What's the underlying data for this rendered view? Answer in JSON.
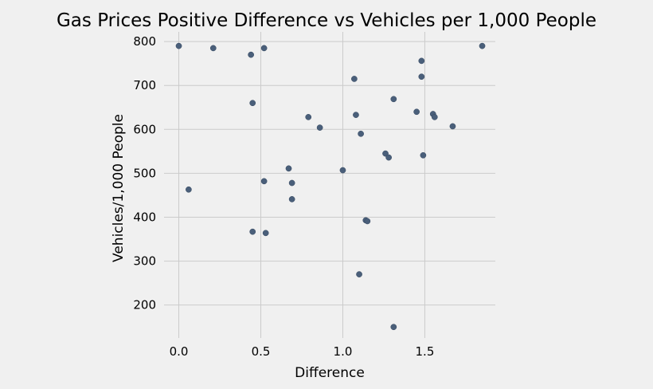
{
  "chart_data": {
    "type": "scatter",
    "title": "Gas Prices Positive Difference vs Vehicles per 1,000 People",
    "xlabel": "Difference",
    "ylabel": "Vehicles/1,000 People",
    "xlim": [
      -0.09,
      1.93
    ],
    "ylim": [
      125,
      822
    ],
    "xticks": [
      0.0,
      0.5,
      1.0,
      1.5
    ],
    "xtick_labels": [
      "0.0",
      "0.5",
      "1.0",
      "1.5"
    ],
    "yticks": [
      200,
      300,
      400,
      500,
      600,
      700,
      800
    ],
    "ytick_labels": [
      "200",
      "300",
      "400",
      "500",
      "600",
      "700",
      "800"
    ],
    "grid": true,
    "colors": {
      "point": "#4a5f7a",
      "background": "#f0f0f0",
      "grid": "#cbcbcb"
    },
    "points": [
      {
        "x": 0.0,
        "y": 790
      },
      {
        "x": 0.21,
        "y": 785
      },
      {
        "x": 0.44,
        "y": 770
      },
      {
        "x": 0.52,
        "y": 785
      },
      {
        "x": 0.06,
        "y": 463
      },
      {
        "x": 0.45,
        "y": 660
      },
      {
        "x": 0.45,
        "y": 367
      },
      {
        "x": 0.52,
        "y": 482
      },
      {
        "x": 0.53,
        "y": 364
      },
      {
        "x": 0.67,
        "y": 511
      },
      {
        "x": 0.69,
        "y": 478
      },
      {
        "x": 0.69,
        "y": 441
      },
      {
        "x": 0.79,
        "y": 628
      },
      {
        "x": 0.86,
        "y": 604
      },
      {
        "x": 1.0,
        "y": 507
      },
      {
        "x": 1.07,
        "y": 715
      },
      {
        "x": 1.08,
        "y": 633
      },
      {
        "x": 1.11,
        "y": 590
      },
      {
        "x": 1.1,
        "y": 270
      },
      {
        "x": 1.14,
        "y": 393
      },
      {
        "x": 1.15,
        "y": 391
      },
      {
        "x": 1.26,
        "y": 545
      },
      {
        "x": 1.28,
        "y": 536
      },
      {
        "x": 1.31,
        "y": 669
      },
      {
        "x": 1.31,
        "y": 150
      },
      {
        "x": 1.45,
        "y": 640
      },
      {
        "x": 1.48,
        "y": 756
      },
      {
        "x": 1.48,
        "y": 720
      },
      {
        "x": 1.49,
        "y": 541
      },
      {
        "x": 1.55,
        "y": 635
      },
      {
        "x": 1.56,
        "y": 628
      },
      {
        "x": 1.67,
        "y": 607
      },
      {
        "x": 1.85,
        "y": 790
      }
    ]
  }
}
